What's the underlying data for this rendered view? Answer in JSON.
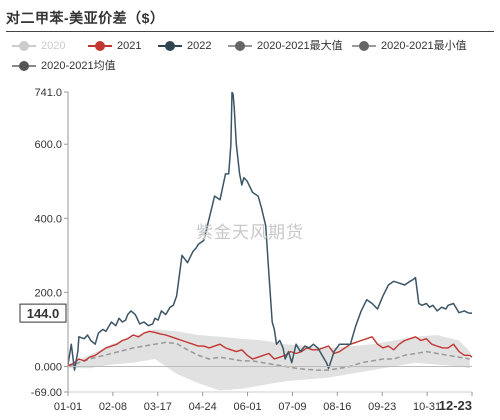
{
  "chart_data": {
    "type": "line",
    "title": "对二甲苯-美亚价差（$）",
    "watermark": "紫金天风期货",
    "y_ticks": [
      "741.0",
      "600.0",
      "400.0",
      "200.0",
      "0.000",
      "-69.00"
    ],
    "ylim": [
      -69,
      741
    ],
    "current_value_label": "144.0",
    "current_value": 144,
    "x_ticks": [
      "01-01",
      "02-08",
      "03-17",
      "04-24",
      "06-01",
      "07-09",
      "08-16",
      "09-23",
      "10-31",
      "12-23"
    ],
    "legend": [
      {
        "name": "2020",
        "color": "#cccccc",
        "line_color": "#cccccc",
        "muted": true
      },
      {
        "name": "2021",
        "color": "#c23531",
        "line_color": "#c23531",
        "muted": false
      },
      {
        "name": "2022",
        "color": "#2f4554",
        "line_color": "#2f4554",
        "muted": false
      },
      {
        "name": "2020-2021最大值",
        "color": "#666666",
        "line_color": "#999999",
        "muted": false
      },
      {
        "name": "2020-2021最小值",
        "color": "#666666",
        "line_color": "#999999",
        "muted": false
      },
      {
        "name": "2020-2021均值",
        "color": "#555555",
        "line_color": "#888888",
        "muted": false
      }
    ],
    "series": [
      {
        "name": "2022",
        "x": [
          0,
          3,
          6,
          9,
          10,
          15,
          18,
          21,
          25,
          28,
          32,
          35,
          40,
          44,
          47,
          50,
          53,
          55,
          58,
          62,
          66,
          70,
          74,
          78,
          80,
          83,
          86,
          90,
          94,
          97,
          100,
          105,
          110,
          115,
          118,
          120,
          125,
          130,
          135,
          140,
          145,
          148,
          150,
          151,
          152,
          153,
          155,
          158,
          160,
          162,
          165,
          170,
          175,
          178,
          182,
          185,
          188,
          190,
          192,
          195,
          198,
          200,
          203,
          206,
          210,
          214,
          218,
          222,
          226,
          230,
          234,
          238,
          240,
          245,
          250,
          255,
          260,
          265,
          270,
          275,
          280,
          285,
          290,
          295,
          300,
          305,
          310,
          315,
          318,
          320,
          323,
          326,
          330,
          333,
          336,
          340,
          344,
          348,
          350,
          355,
          360,
          365,
          368,
          370,
          372
        ],
        "y": [
          5,
          60,
          -10,
          40,
          80,
          75,
          85,
          70,
          60,
          90,
          100,
          95,
          120,
          110,
          130,
          120,
          125,
          140,
          150,
          140,
          115,
          120,
          110,
          115,
          130,
          125,
          150,
          140,
          160,
          165,
          190,
          300,
          280,
          310,
          320,
          330,
          340,
          400,
          460,
          450,
          520,
          520,
          600,
          740,
          735,
          700,
          600,
          520,
          490,
          510,
          500,
          470,
          460,
          430,
          380,
          250,
          120,
          100,
          60,
          70,
          50,
          20,
          40,
          10,
          60,
          40,
          55,
          50,
          60,
          50,
          30,
          10,
          -5,
          40,
          60,
          60,
          60,
          110,
          150,
          180,
          170,
          155,
          190,
          220,
          230,
          225,
          220,
          230,
          235,
          240,
          170,
          165,
          170,
          160,
          165,
          150,
          160,
          155,
          165,
          170,
          145,
          150,
          145,
          144,
          144
        ]
      },
      {
        "name": "2021",
        "x": [
          0,
          5,
          10,
          15,
          20,
          25,
          30,
          35,
          40,
          45,
          50,
          55,
          60,
          65,
          70,
          75,
          80,
          85,
          90,
          95,
          100,
          105,
          110,
          115,
          120,
          125,
          130,
          135,
          140,
          145,
          150,
          155,
          160,
          165,
          170,
          175,
          180,
          185,
          190,
          195,
          200,
          205,
          210,
          215,
          220,
          225,
          230,
          235,
          240,
          245,
          250,
          255,
          260,
          265,
          270,
          275,
          280,
          285,
          290,
          295,
          300,
          305,
          310,
          315,
          320,
          325,
          330,
          335,
          340,
          345,
          350,
          355,
          360,
          365,
          370,
          372
        ],
        "y": [
          2,
          8,
          20,
          15,
          25,
          30,
          40,
          50,
          55,
          60,
          70,
          75,
          85,
          80,
          90,
          95,
          92,
          88,
          85,
          80,
          75,
          70,
          65,
          60,
          55,
          55,
          50,
          55,
          60,
          50,
          45,
          40,
          45,
          30,
          20,
          25,
          30,
          35,
          20,
          25,
          30,
          40,
          35,
          40,
          50,
          45,
          45,
          50,
          55,
          35,
          40,
          50,
          60,
          65,
          70,
          75,
          80,
          60,
          50,
          55,
          45,
          60,
          70,
          75,
          80,
          70,
          75,
          60,
          55,
          50,
          50,
          60,
          40,
          30,
          30,
          25
        ]
      },
      {
        "name": "2020-2021均值",
        "x": [
          0,
          20,
          40,
          60,
          70,
          80,
          90,
          100,
          110,
          120,
          130,
          140,
          150,
          160,
          170,
          180,
          190,
          200,
          210,
          220,
          230,
          240,
          250,
          260,
          270,
          280,
          290,
          300,
          310,
          320,
          330,
          340,
          350,
          360,
          370
        ],
        "y": [
          0,
          20,
          35,
          50,
          55,
          60,
          65,
          62,
          45,
          30,
          20,
          25,
          20,
          15,
          15,
          10,
          5,
          0,
          -5,
          -8,
          -10,
          -10,
          -5,
          0,
          10,
          15,
          20,
          20,
          30,
          35,
          40,
          35,
          30,
          25,
          20
        ]
      },
      {
        "name": "2020-2021最大值",
        "x": [
          0,
          20,
          40,
          60,
          80,
          100,
          120,
          140,
          160,
          180,
          200,
          220,
          240,
          260,
          280,
          300,
          320,
          340,
          360,
          370
        ],
        "y": [
          5,
          30,
          60,
          80,
          100,
          95,
          85,
          80,
          75,
          70,
          60,
          55,
          50,
          55,
          60,
          70,
          80,
          85,
          70,
          40
        ]
      },
      {
        "name": "2020-2021最小值",
        "x": [
          0,
          20,
          40,
          60,
          80,
          100,
          120,
          140,
          160,
          180,
          200,
          220,
          240,
          260,
          280,
          300,
          320,
          340,
          360,
          370
        ],
        "y": [
          -5,
          -5,
          5,
          10,
          20,
          -20,
          -45,
          -65,
          -60,
          -50,
          -40,
          -35,
          -30,
          -20,
          -10,
          0,
          10,
          5,
          0,
          -5
        ]
      }
    ],
    "xlim": [
      0,
      372
    ],
    "grid": false,
    "legend_position": "top-left"
  }
}
